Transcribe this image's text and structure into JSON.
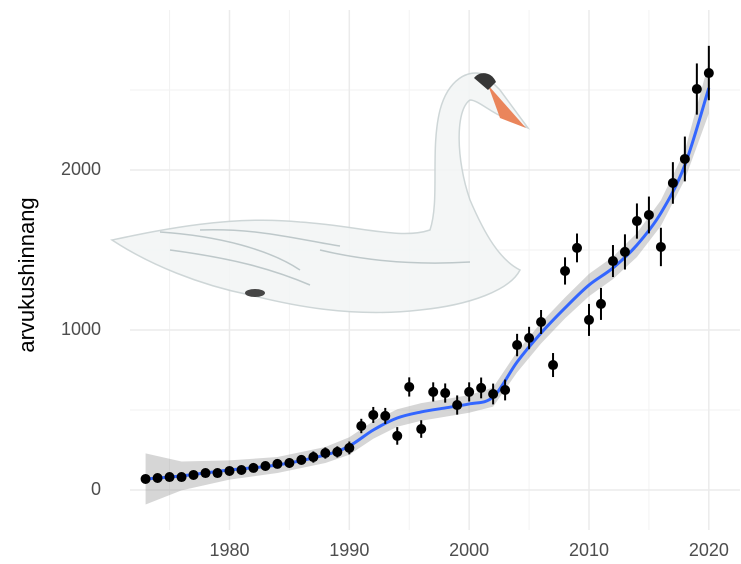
{
  "chart_data": {
    "type": "scatter",
    "y_label": "arvukushinnang",
    "x": [
      1973,
      1974,
      1975,
      1976,
      1977,
      1978,
      1979,
      1980,
      1981,
      1982,
      1983,
      1984,
      1985,
      1986,
      1987,
      1988,
      1989,
      1990,
      1991,
      1992,
      1993,
      1994,
      1995,
      1996,
      1997,
      1998,
      1999,
      2000,
      2001,
      2002,
      2003,
      2004,
      2005,
      2006,
      2007,
      2008,
      2009,
      2010,
      2011,
      2012,
      2013,
      2014,
      2015,
      2016,
      2017,
      2018,
      2019,
      2020
    ],
    "values": [
      69,
      75,
      81,
      81,
      94,
      106,
      106,
      119,
      125,
      138,
      150,
      163,
      169,
      188,
      206,
      231,
      238,
      263,
      400,
      469,
      463,
      338,
      644,
      381,
      613,
      606,
      531,
      613,
      638,
      600,
      625,
      906,
      950,
      1050,
      781,
      1369,
      1513,
      1063,
      1163,
      1431,
      1488,
      1681,
      1719,
      1519,
      1919,
      2069,
      2506,
      2606
    ],
    "errors": [
      20,
      20,
      20,
      20,
      20,
      20,
      20,
      25,
      25,
      25,
      25,
      25,
      30,
      30,
      35,
      35,
      35,
      40,
      45,
      50,
      50,
      55,
      60,
      55,
      60,
      60,
      60,
      60,
      65,
      65,
      65,
      70,
      70,
      75,
      75,
      85,
      90,
      100,
      100,
      100,
      110,
      110,
      115,
      120,
      130,
      140,
      160,
      170
    ],
    "color": "#000000",
    "smooth": {
      "type": "line",
      "x": [
        1973,
        1976,
        1980,
        1984,
        1988,
        1990,
        1992,
        1994,
        1996,
        1998,
        2000,
        2002,
        2004,
        2006,
        2008,
        2010,
        2012,
        2014,
        2016,
        2018,
        2020
      ],
      "values": [
        69,
        88,
        125,
        156,
        219,
        275,
        375,
        450,
        488,
        513,
        538,
        581,
        800,
        981,
        1138,
        1281,
        1388,
        1531,
        1731,
        2031,
        2513
      ],
      "lower": [
        -91,
        -2,
        65,
        106,
        169,
        220,
        320,
        395,
        433,
        458,
        483,
        521,
        735,
        916,
        1073,
        1211,
        1318,
        1456,
        1651,
        1941,
        2353
      ],
      "upper": [
        229,
        178,
        185,
        206,
        269,
        330,
        430,
        505,
        543,
        568,
        593,
        641,
        865,
        1046,
        1203,
        1351,
        1458,
        1606,
        1811,
        2121,
        2673
      ],
      "color": "#3366ff",
      "ribbon_color": "#999999"
    },
    "xlim": [
      1971.7,
      2022.6
    ],
    "ylim": [
      -250,
      3000
    ],
    "xticks": [
      1980,
      1990,
      2000,
      2010,
      2020
    ],
    "yticks": [
      0,
      1000,
      2000
    ],
    "minor_xticks": [
      1975,
      1985,
      1995,
      2005,
      2015
    ],
    "minor_yticks": [
      500,
      1500,
      2500
    ],
    "grid": true
  }
}
